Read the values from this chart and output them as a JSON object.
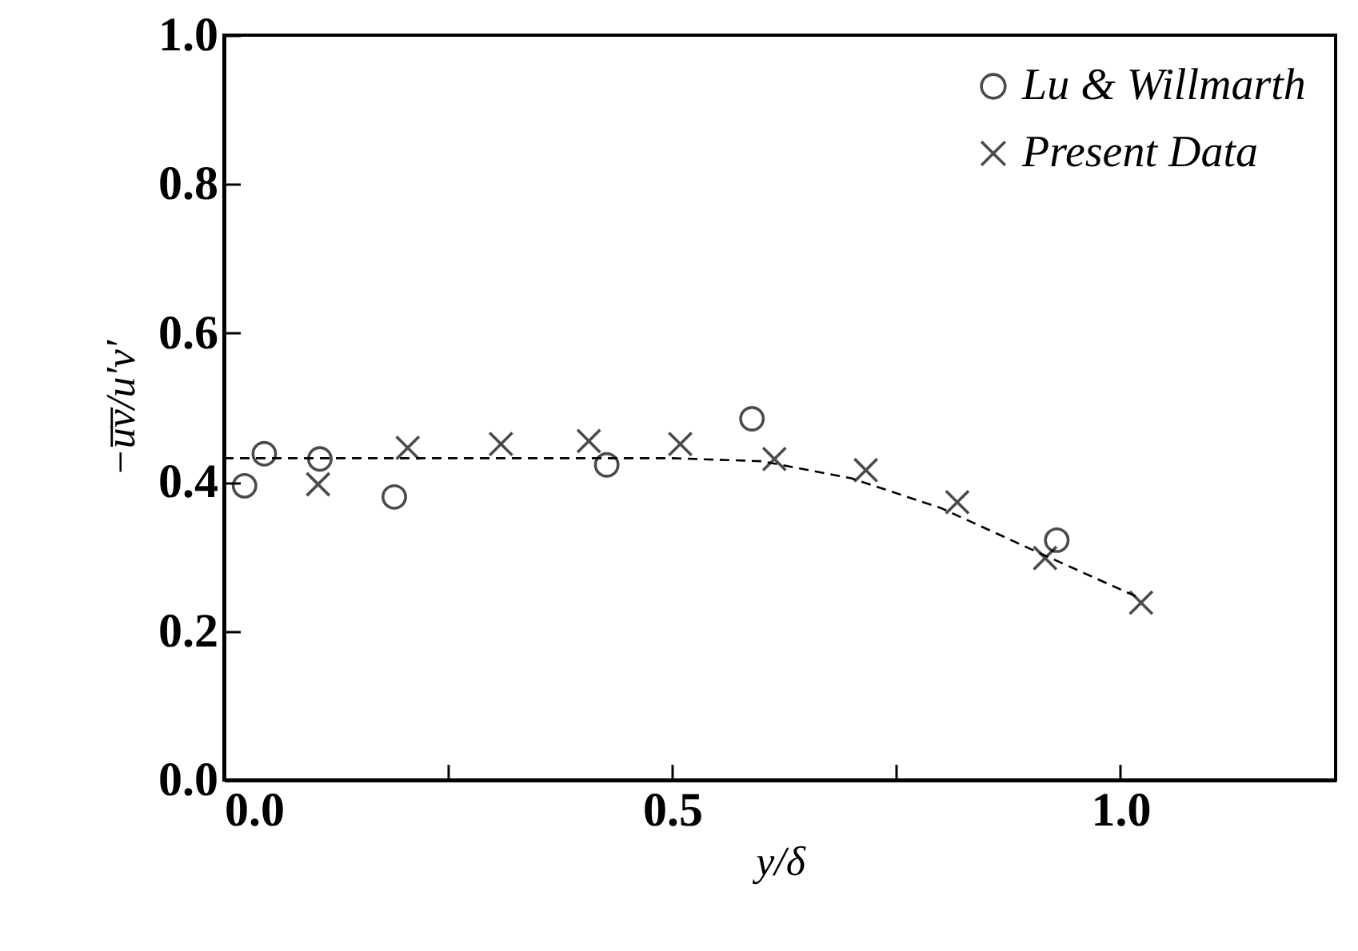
{
  "chart_data": {
    "type": "scatter",
    "xlabel": "y/δ",
    "ylabel": "−u̅v̅/u′v′",
    "xlim": [
      0,
      1.24
    ],
    "ylim": [
      0,
      1
    ],
    "xticks": [
      {
        "value": 0,
        "label": "0.0"
      },
      {
        "value": 0.25,
        "label": null
      },
      0.5,
      {
        "value": 0.75,
        "label": null
      },
      {
        "value": 1,
        "label": "1.0"
      }
    ],
    "yticks": [
      {
        "value": 0,
        "label": "0.0"
      },
      0.2,
      0.4,
      0.6,
      0.8,
      {
        "value": 1,
        "label": "1.0"
      }
    ],
    "grid": false,
    "legend": "top right",
    "series": [
      {
        "name": "Lu & Willmarth",
        "marker": "circle",
        "color": "#000000",
        "x": [
          0.023,
          0.045,
          0.107,
          0.19,
          0.427,
          0.589,
          0.929
        ],
        "values": [
          0.395,
          0.438,
          0.431,
          0.38,
          0.423,
          0.485,
          0.322
        ]
      },
      {
        "name": "Present Data",
        "marker": "cross",
        "color": "#000000",
        "x": [
          0.105,
          0.205,
          0.309,
          0.407,
          0.509,
          0.614,
          0.716,
          0.818,
          0.916,
          1.023
        ],
        "values": [
          0.397,
          0.446,
          0.451,
          0.455,
          0.451,
          0.431,
          0.416,
          0.373,
          0.298,
          0.238
        ]
      },
      {
        "type": "line",
        "line_style": "dashed",
        "color": "#000000",
        "x": [
          0,
          0.25,
          0.5,
          0.6,
          0.7,
          0.8,
          0.9,
          1.02
        ],
        "values": [
          0.432,
          0.432,
          0.432,
          0.428,
          0.405,
          0.365,
          0.31,
          0.245
        ]
      }
    ]
  }
}
